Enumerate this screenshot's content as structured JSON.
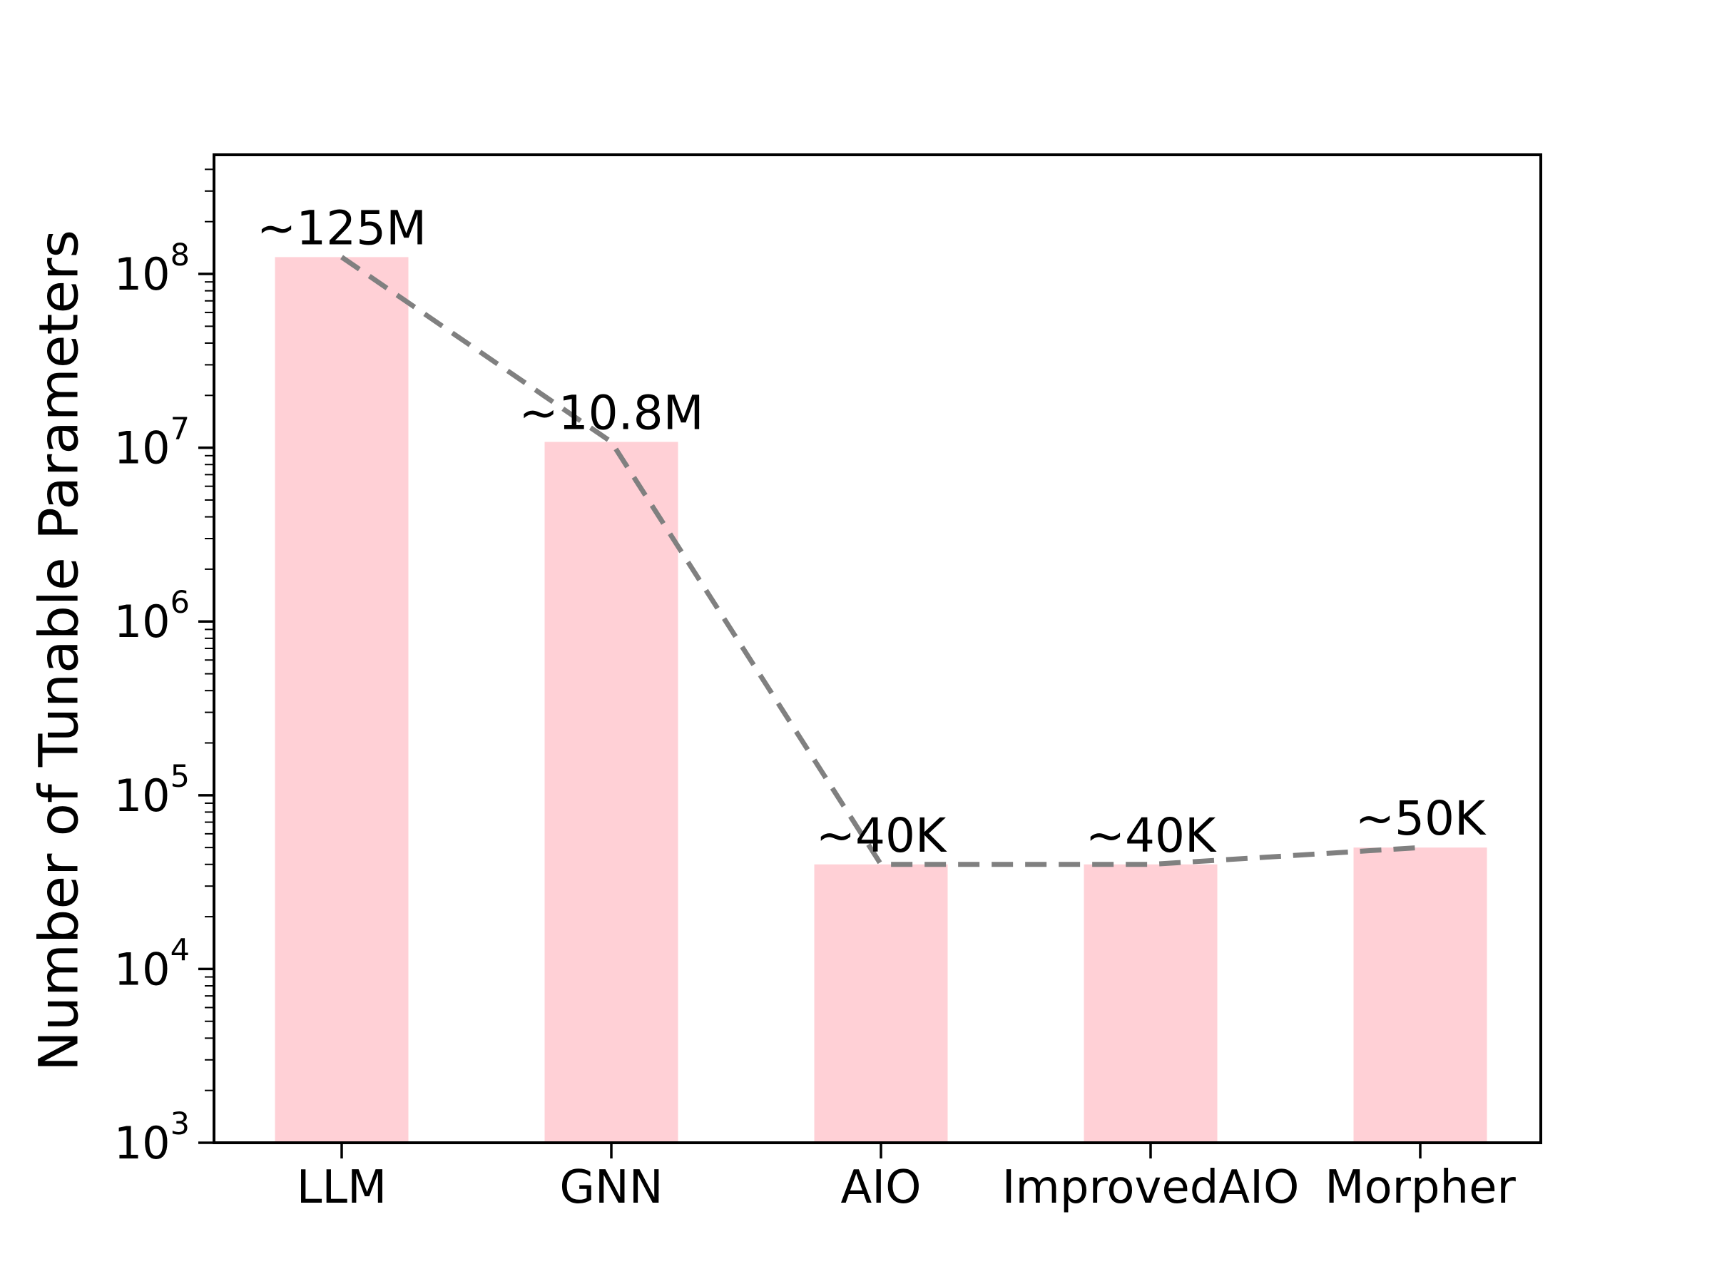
{
  "figure": {
    "title": "",
    "background": "#ffffff"
  },
  "chart_data": {
    "type": "bar",
    "categories": [
      "LLM",
      "GNN",
      "AIO",
      "ImprovedAIO",
      "Morpher"
    ],
    "values": [
      125000000,
      10800000,
      40000,
      40000,
      50000
    ],
    "annotations": [
      "~125M",
      "~10.8M",
      "~40K",
      "~40K",
      "~50K"
    ],
    "title": "",
    "xlabel": "",
    "ylabel": "Number of Tunable Parameters",
    "yscale": "log",
    "ylim": [
      1000,
      485000000
    ],
    "ytick_exponents": [
      3,
      4,
      5,
      6,
      7,
      8
    ],
    "ytick_labels": [
      "10^3",
      "10^4",
      "10^5",
      "10^6",
      "10^7",
      "10^8"
    ],
    "grid": false,
    "legend": false,
    "overlay_line": {
      "type": "line",
      "style": "dashed",
      "color": "#808080",
      "connects": "bar-tops",
      "values": [
        125000000,
        10800000,
        40000,
        40000,
        50000
      ]
    },
    "colors": {
      "bar_fill": "#ffd0d6",
      "axis": "#000000",
      "text": "#000000",
      "dashed_line": "#808080"
    }
  }
}
